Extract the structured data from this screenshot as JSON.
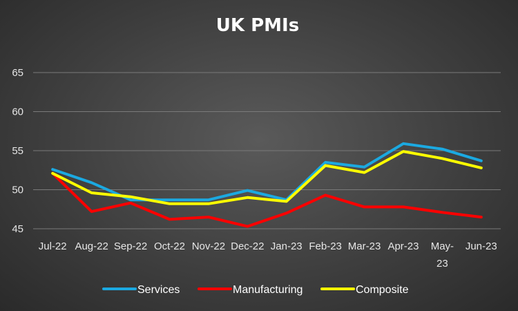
{
  "chart_data": {
    "type": "line",
    "title": "UK PMIs",
    "xlabel": "",
    "ylabel": "",
    "categories": [
      "Jul-22",
      "Aug-22",
      "Sep-22",
      "Oct-22",
      "Nov-22",
      "Dec-22",
      "Jan-23",
      "Feb-23",
      "Mar-23",
      "Apr-23",
      "May-\n23",
      "Jun-23"
    ],
    "ylim": [
      45,
      65
    ],
    "yticks": [
      45,
      50,
      55,
      60,
      65
    ],
    "grid": "horizontal",
    "legend_position": "bottom",
    "series": [
      {
        "name": "Services",
        "color": "#1ba9e1",
        "values": [
          52.6,
          50.9,
          48.7,
          48.7,
          48.7,
          49.9,
          48.7,
          53.5,
          52.9,
          55.9,
          55.2,
          53.7
        ]
      },
      {
        "name": "Manufacturing",
        "color": "#ff0000",
        "values": [
          52.1,
          47.2,
          48.3,
          46.2,
          46.5,
          45.3,
          47.0,
          49.3,
          47.8,
          47.8,
          47.1,
          46.5
        ]
      },
      {
        "name": "Composite",
        "color": "#ffff00",
        "values": [
          52.1,
          49.6,
          49.1,
          48.2,
          48.2,
          49.0,
          48.5,
          53.1,
          52.2,
          54.9,
          54.0,
          52.8
        ]
      }
    ]
  }
}
